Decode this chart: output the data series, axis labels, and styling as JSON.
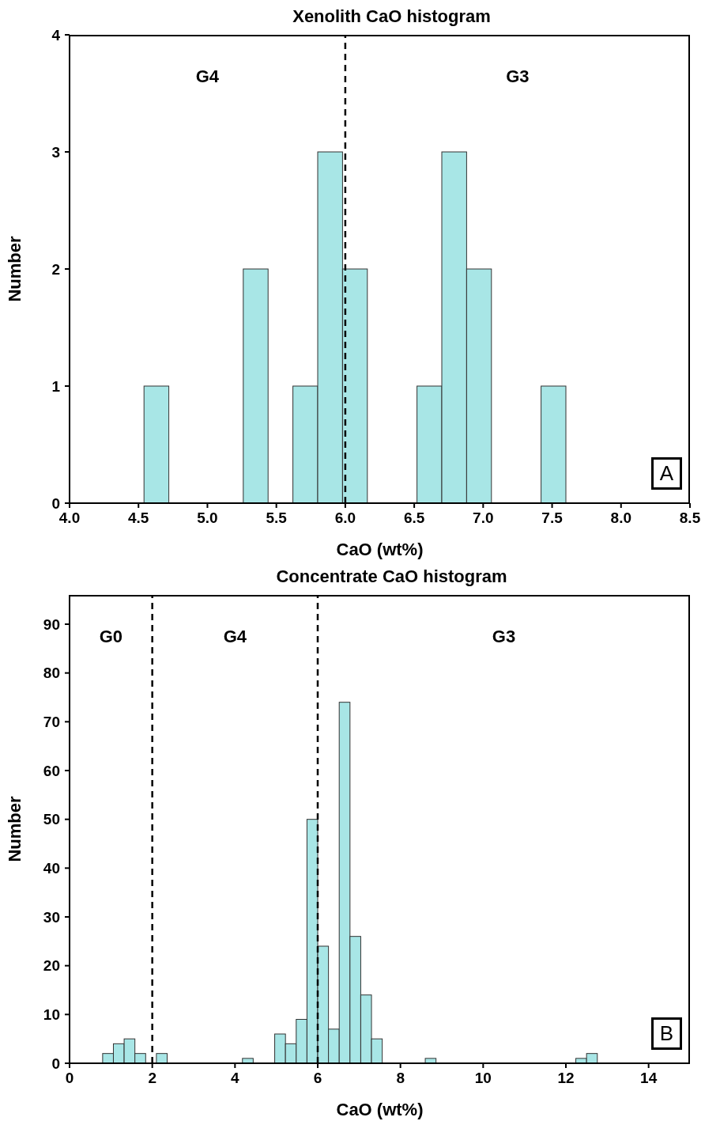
{
  "chart_data": [
    {
      "type": "histogram",
      "title": "Xenolith CaO histogram",
      "xlabel": "CaO (wt%)",
      "ylabel": "Number",
      "color": "#a8e6e6",
      "bins": [
        4.54,
        4.72,
        4.9,
        5.08,
        5.26,
        5.44,
        5.62,
        5.8,
        5.98,
        6.16,
        6.34,
        6.52,
        6.7,
        6.88,
        7.06,
        7.24,
        7.42,
        7.6
      ],
      "values": [
        1,
        0,
        0,
        0,
        2,
        0,
        1,
        3,
        2,
        0,
        0,
        1,
        3,
        2,
        0,
        0,
        1
      ],
      "xlim": [
        4,
        8.5
      ],
      "xticks": [
        {
          "value": 4,
          "label": "4.0"
        },
        4.5,
        {
          "value": 5,
          "label": "5.0"
        },
        5.5,
        {
          "value": 6,
          "label": "6.0"
        },
        6.5,
        {
          "value": 7,
          "label": "7.0"
        },
        7.5,
        {
          "value": 8,
          "label": "8.0"
        },
        8.5
      ],
      "ylim": [
        0,
        4
      ],
      "yticks": [
        0,
        1,
        2,
        3,
        4
      ],
      "ref_lines": [
        {
          "axis": "x",
          "value": 6,
          "line_style": "dashed"
        }
      ],
      "annotations": [
        "G4",
        "G3",
        "A"
      ]
    },
    {
      "type": "histogram",
      "title": "Concentrate CaO histogram",
      "xlabel": "CaO (wt%)",
      "ylabel": "Number",
      "color": "#a8e6e6",
      "bins": [
        0.8,
        1.06,
        1.32,
        1.58,
        1.84,
        2.1,
        2.36,
        2.62,
        2.88,
        3.14,
        3.4,
        3.66,
        3.92,
        4.18,
        4.44,
        4.7,
        4.96,
        5.22,
        5.48,
        5.74,
        6.0,
        6.26,
        6.52,
        6.78,
        7.04,
        7.3,
        7.56,
        7.82,
        8.08,
        8.34,
        8.6,
        8.86,
        9.12,
        9.38,
        9.64,
        9.9,
        10.16,
        10.42,
        10.68,
        10.94,
        11.2,
        11.46,
        11.72,
        11.98,
        12.24,
        12.5,
        12.76
      ],
      "values": [
        2,
        4,
        5,
        2,
        0,
        2,
        0,
        0,
        0,
        0,
        0,
        0,
        0,
        1,
        0,
        0,
        6,
        4,
        9,
        50,
        24,
        7,
        74,
        26,
        14,
        5,
        0,
        0,
        0,
        0,
        1,
        0,
        0,
        0,
        0,
        0,
        0,
        0,
        0,
        0,
        0,
        0,
        0,
        0,
        1,
        2
      ],
      "xlim": [
        0,
        15
      ],
      "xticks": [
        0,
        2,
        4,
        6,
        8,
        10,
        12,
        14
      ],
      "ylim": [
        0,
        96
      ],
      "yticks": [
        0,
        10,
        20,
        30,
        40,
        50,
        60,
        70,
        80,
        90
      ],
      "ref_lines": [
        {
          "axis": "x",
          "value": 2,
          "line_style": "dashed"
        },
        {
          "axis": "x",
          "value": 6,
          "line_style": "dashed"
        }
      ],
      "annotations": [
        "G0",
        "G4",
        "G3",
        "B"
      ]
    }
  ]
}
